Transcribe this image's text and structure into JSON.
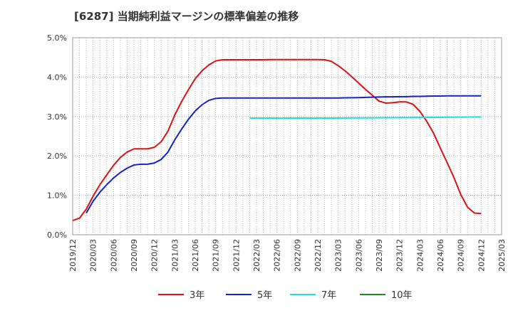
{
  "chart_data": {
    "type": "line",
    "title": "[6287]  当期純利益マージンの標準偏差の推移",
    "xlabel": "",
    "ylabel": "",
    "ylim": [
      0.0,
      5.0
    ],
    "grid": true,
    "legend_position": "bottom",
    "y_ticks": [
      {
        "value": 0.0,
        "label": "0.0%"
      },
      {
        "value": 1.0,
        "label": "1.0%"
      },
      {
        "value": 2.0,
        "label": "2.0%"
      },
      {
        "value": 3.0,
        "label": "3.0%"
      },
      {
        "value": 4.0,
        "label": "4.0%"
      },
      {
        "value": 5.0,
        "label": "5.0%"
      }
    ],
    "x_ticks": [
      "2019/12",
      "2020/03",
      "2020/06",
      "2020/09",
      "2020/12",
      "2021/03",
      "2021/06",
      "2021/09",
      "2021/12",
      "2022/03",
      "2022/06",
      "2022/09",
      "2022/12",
      "2023/03",
      "2023/06",
      "2023/09",
      "2023/12",
      "2024/03",
      "2024/06",
      "2024/09",
      "2024/12",
      "2025/03"
    ],
    "series": [
      {
        "name": "3年",
        "color": "#dd1111",
        "points": [
          [
            0,
            0.36
          ],
          [
            1,
            0.42
          ],
          [
            2,
            0.65
          ],
          [
            3,
            0.98
          ],
          [
            4,
            1.27
          ],
          [
            5,
            1.52
          ],
          [
            6,
            1.76
          ],
          [
            7,
            1.96
          ],
          [
            8,
            2.1
          ],
          [
            9,
            2.18
          ],
          [
            10,
            2.18
          ],
          [
            11,
            2.18
          ],
          [
            12,
            2.22
          ],
          [
            13,
            2.36
          ],
          [
            14,
            2.63
          ],
          [
            15,
            3.04
          ],
          [
            16,
            3.38
          ],
          [
            17,
            3.68
          ],
          [
            18,
            3.96
          ],
          [
            19,
            4.16
          ],
          [
            20,
            4.31
          ],
          [
            21,
            4.41
          ],
          [
            22,
            4.44
          ],
          [
            23,
            4.44
          ],
          [
            24,
            4.44
          ],
          [
            25,
            4.44
          ],
          [
            26,
            4.44
          ],
          [
            27,
            4.44
          ],
          [
            28,
            4.44
          ],
          [
            29,
            4.445
          ],
          [
            30,
            4.445
          ],
          [
            31,
            4.445
          ],
          [
            32,
            4.445
          ],
          [
            33,
            4.445
          ],
          [
            34,
            4.445
          ],
          [
            35,
            4.445
          ],
          [
            36,
            4.445
          ],
          [
            37,
            4.44
          ],
          [
            38,
            4.4
          ],
          [
            39,
            4.29
          ],
          [
            40,
            4.16
          ],
          [
            41,
            4.01
          ],
          [
            42,
            3.85
          ],
          [
            43,
            3.69
          ],
          [
            44,
            3.54
          ],
          [
            45,
            3.39
          ],
          [
            46,
            3.34
          ],
          [
            47,
            3.35
          ],
          [
            48,
            3.37
          ],
          [
            49,
            3.37
          ],
          [
            50,
            3.31
          ],
          [
            51,
            3.13
          ],
          [
            52,
            2.88
          ],
          [
            53,
            2.58
          ],
          [
            54,
            2.2
          ],
          [
            55,
            1.83
          ],
          [
            56,
            1.45
          ],
          [
            57,
            1.02
          ],
          [
            58,
            0.7
          ],
          [
            59,
            0.55
          ],
          [
            60,
            0.54
          ]
        ]
      },
      {
        "name": "5年",
        "color": "#1122cc",
        "points": [
          [
            2,
            0.55
          ],
          [
            3,
            0.85
          ],
          [
            4,
            1.08
          ],
          [
            5,
            1.27
          ],
          [
            6,
            1.44
          ],
          [
            7,
            1.58
          ],
          [
            8,
            1.69
          ],
          [
            9,
            1.77
          ],
          [
            10,
            1.79
          ],
          [
            11,
            1.79
          ],
          [
            12,
            1.82
          ],
          [
            13,
            1.91
          ],
          [
            14,
            2.1
          ],
          [
            15,
            2.41
          ],
          [
            16,
            2.68
          ],
          [
            17,
            2.93
          ],
          [
            18,
            3.14
          ],
          [
            19,
            3.3
          ],
          [
            20,
            3.41
          ],
          [
            21,
            3.46
          ],
          [
            22,
            3.47
          ],
          [
            23,
            3.47
          ],
          [
            24,
            3.47
          ],
          [
            25,
            3.47
          ],
          [
            26,
            3.47
          ],
          [
            27,
            3.47
          ],
          [
            28,
            3.47
          ],
          [
            29,
            3.47
          ],
          [
            30,
            3.47
          ],
          [
            31,
            3.47
          ],
          [
            32,
            3.47
          ],
          [
            33,
            3.47
          ],
          [
            34,
            3.47
          ],
          [
            35,
            3.47
          ],
          [
            36,
            3.47
          ],
          [
            37,
            3.47
          ],
          [
            38,
            3.47
          ],
          [
            39,
            3.47
          ],
          [
            40,
            3.475
          ],
          [
            41,
            3.478
          ],
          [
            42,
            3.48
          ],
          [
            43,
            3.485
          ],
          [
            44,
            3.49
          ],
          [
            45,
            3.495
          ],
          [
            46,
            3.5
          ],
          [
            47,
            3.5
          ],
          [
            48,
            3.505
          ],
          [
            49,
            3.505
          ],
          [
            50,
            3.51
          ],
          [
            51,
            3.51
          ],
          [
            52,
            3.515
          ],
          [
            53,
            3.52
          ],
          [
            54,
            3.52
          ],
          [
            55,
            3.525
          ],
          [
            56,
            3.525
          ],
          [
            57,
            3.525
          ],
          [
            58,
            3.525
          ],
          [
            59,
            3.525
          ],
          [
            60,
            3.525
          ]
        ]
      },
      {
        "name": "7年",
        "color": "#22dddd",
        "points": [
          [
            26,
            2.96
          ],
          [
            30,
            2.96
          ],
          [
            34,
            2.96
          ],
          [
            38,
            2.96
          ],
          [
            42,
            2.965
          ],
          [
            46,
            2.97
          ],
          [
            50,
            2.975
          ],
          [
            54,
            2.98
          ],
          [
            57,
            2.985
          ],
          [
            60,
            2.99
          ]
        ]
      },
      {
        "name": "10年",
        "color": "#228822",
        "points": []
      }
    ]
  }
}
